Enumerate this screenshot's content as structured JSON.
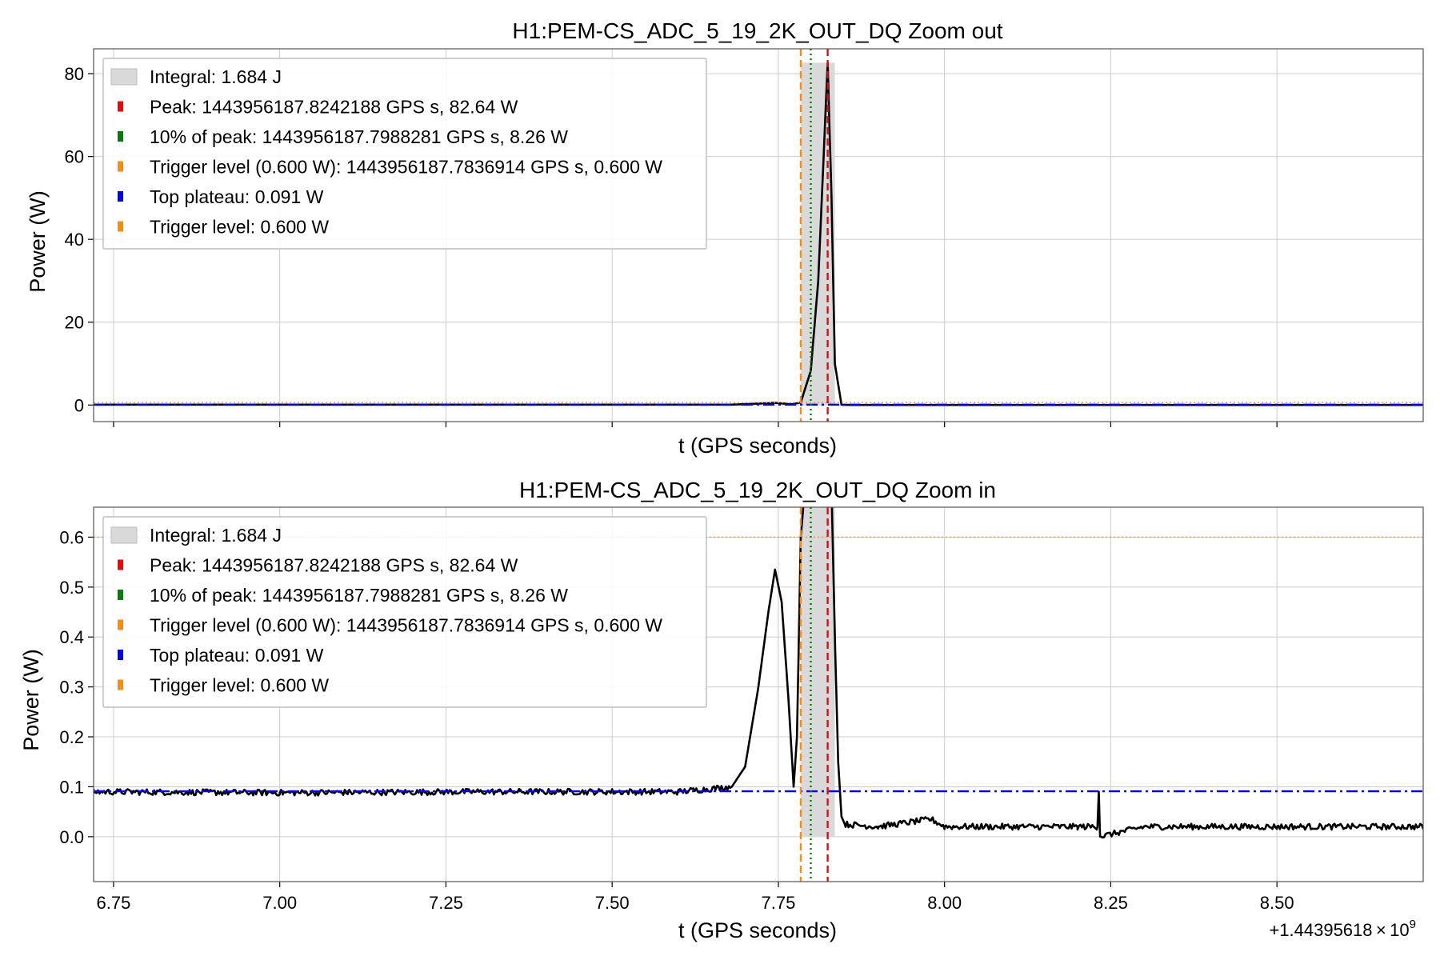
{
  "x_offset_label": "+1.44395618 × 10",
  "x_offset_exp": "9",
  "colors": {
    "signal": "#000000",
    "peak": "#ff0000",
    "ten_percent": "#008000",
    "trigger": "#ff8c00",
    "plateau": "#0000ff",
    "integral_fill": "#d9d9d9",
    "grid": "#cccccc",
    "legend_border": "#b0b0b0"
  },
  "chart_data": [
    {
      "type": "line",
      "title": "H1:PEM-CS_ADC_5_19_2K_OUT_DQ Zoom out",
      "xlabel": "t (GPS seconds)",
      "ylabel": "Power (W)",
      "xlim": [
        6.72,
        8.72
      ],
      "ylim": [
        -4.0,
        86.0
      ],
      "yticks": [
        "0",
        "20",
        "40",
        "60",
        "80"
      ],
      "ytick_values": [
        0,
        20,
        40,
        60,
        80
      ],
      "xticks": [
        6.75,
        7.0,
        7.25,
        7.5,
        7.75,
        8.0,
        8.25,
        8.5
      ],
      "xtick_labels_visible": false,
      "grid": true,
      "legend_position": "top-left",
      "legend": [
        "Integral: 1.684 J",
        "Peak: 1443956187.8242188 GPS s, 82.64 W",
        "10% of peak: 1443956187.7988281 GPS s, 8.26 W",
        "Trigger level (0.600 W): 1443956187.7836914 GPS s, 0.600 W",
        "Top plateau: 0.091 W",
        "Trigger level: 0.600 W"
      ],
      "vlines": {
        "trigger": 7.7837,
        "ten_percent": 7.7988,
        "peak": 7.8242
      },
      "hlines": {
        "plateau": 0.091,
        "trigger": 0.6
      },
      "integral_span": [
        7.7837,
        7.835
      ],
      "signal": {
        "x": [
          6.72,
          7.6,
          7.68,
          7.72,
          7.745,
          7.77,
          7.7837,
          7.7988,
          7.81,
          7.8242,
          7.83,
          7.835,
          7.845,
          7.86,
          8.72
        ],
        "y": [
          0.09,
          0.09,
          0.1,
          0.35,
          0.53,
          0.2,
          0.6,
          8.26,
          30,
          82.64,
          50,
          10,
          0.05,
          0.02,
          0.02
        ]
      }
    },
    {
      "type": "line",
      "title": "H1:PEM-CS_ADC_5_19_2K_OUT_DQ Zoom in",
      "xlabel": "t (GPS seconds)",
      "ylabel": "Power (W)",
      "xlim": [
        6.72,
        8.72
      ],
      "ylim": [
        -0.09,
        0.66
      ],
      "yticks": [
        "0.0",
        "0.1",
        "0.2",
        "0.3",
        "0.4",
        "0.5",
        "0.6"
      ],
      "ytick_values": [
        0.0,
        0.1,
        0.2,
        0.3,
        0.4,
        0.5,
        0.6
      ],
      "xticks": [
        6.75,
        7.0,
        7.25,
        7.5,
        7.75,
        8.0,
        8.25,
        8.5
      ],
      "xtick_labels": [
        "6.75",
        "7.00",
        "7.25",
        "7.50",
        "7.75",
        "8.00",
        "8.25",
        "8.50"
      ],
      "grid": true,
      "legend_position": "top-left",
      "legend": [
        "Integral: 1.684 J",
        "Peak: 1443956187.8242188 GPS s, 82.64 W",
        "10% of peak: 1443956187.7988281 GPS s, 8.26 W",
        "Trigger level (0.600 W): 1443956187.7836914 GPS s, 0.600 W",
        "Top plateau: 0.091 W",
        "Trigger level: 0.600 W"
      ],
      "vlines": {
        "trigger": 7.7837,
        "ten_percent": 7.7988,
        "peak": 7.8242
      },
      "hlines": {
        "plateau": 0.091,
        "trigger": 0.6
      },
      "integral_span": [
        7.7837,
        7.835
      ],
      "signal": {
        "x": [
          6.72,
          7.0,
          7.3,
          7.6,
          7.68,
          7.7,
          7.72,
          7.735,
          7.745,
          7.755,
          7.765,
          7.773,
          7.778,
          7.7837,
          7.79,
          7.83,
          7.835,
          7.84,
          7.845,
          7.85,
          7.9,
          7.98,
          8.0,
          8.1,
          8.2,
          8.23,
          8.232,
          8.234,
          8.3,
          8.5,
          8.72
        ],
        "y": [
          0.09,
          0.088,
          0.09,
          0.09,
          0.1,
          0.14,
          0.3,
          0.45,
          0.535,
          0.47,
          0.28,
          0.1,
          0.2,
          0.6,
          0.7,
          0.7,
          0.4,
          0.15,
          0.04,
          0.025,
          0.02,
          0.035,
          0.02,
          0.02,
          0.02,
          0.02,
          0.09,
          0.0,
          0.02,
          0.02,
          0.02
        ]
      }
    }
  ]
}
